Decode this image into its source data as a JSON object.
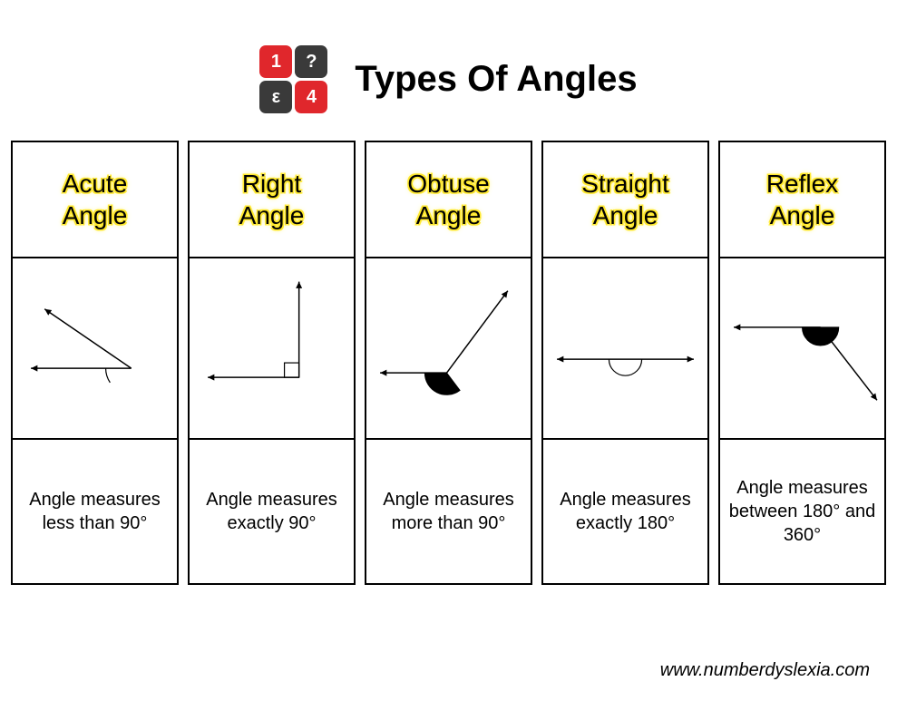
{
  "page": {
    "title": "Types Of Angles",
    "footer": "www.numberdyslexia.com",
    "background_color": "#ffffff",
    "title_fontsize": 40,
    "title_color": "#000000"
  },
  "logo": {
    "tiles": [
      {
        "glyph": "1",
        "bg": "#e0272c",
        "fg": "#ffffff"
      },
      {
        "glyph": "?",
        "bg": "#3a3a3a",
        "fg": "#ffffff"
      },
      {
        "glyph": "ε",
        "bg": "#3a3a3a",
        "fg": "#ffffff"
      },
      {
        "glyph": "4",
        "bg": "#e0272c",
        "fg": "#ffffff"
      }
    ],
    "tile_size": 36,
    "tile_radius": 7,
    "gap": 3
  },
  "columns": [
    {
      "title": "Acute\nAngle",
      "desc": "Angle measures less than 90°",
      "diagram": {
        "type": "angle",
        "vertex": [
          130,
          120
        ],
        "ray1_end": [
          20,
          120
        ],
        "ray2_end": [
          35,
          55
        ],
        "arc_radius": 28,
        "arc_start_deg": 180,
        "arc_end_deg": 214,
        "stroke": "#000000",
        "stroke_width": 1.5,
        "arrow_size": 8
      }
    },
    {
      "title": "Right\nAngle",
      "desc": "Angle measures exactly 90°",
      "diagram": {
        "type": "right-angle",
        "vertex": [
          120,
          130
        ],
        "ray1_end": [
          20,
          130
        ],
        "ray2_end": [
          120,
          25
        ],
        "square_size": 16,
        "stroke": "#000000",
        "stroke_width": 1.5,
        "arrow_size": 8
      }
    },
    {
      "title": "Obtuse\nAngle",
      "desc": "Angle measures more than 90°",
      "diagram": {
        "type": "angle",
        "vertex": [
          88,
          125
        ],
        "ray1_end": [
          15,
          125
        ],
        "ray2_end": [
          155,
          35
        ],
        "arc_radius": 24,
        "arc_start_deg": 180,
        "arc_end_deg": 307,
        "stroke": "#000000",
        "stroke_width": 1.5,
        "arrow_size": 8,
        "arc_fill": "#000000"
      }
    },
    {
      "title": "Straight\nAngle",
      "desc": "Angle measures exactly 180°",
      "diagram": {
        "type": "angle",
        "vertex": [
          90,
          110
        ],
        "ray1_end": [
          15,
          110
        ],
        "ray2_end": [
          165,
          110
        ],
        "arc_radius": 18,
        "arc_start_deg": 180,
        "arc_end_deg": 360,
        "stroke": "#000000",
        "stroke_width": 1.5,
        "arrow_size": 8
      }
    },
    {
      "title": "Reflex\nAngle",
      "desc": "Angle measures between 180° and 360°",
      "diagram": {
        "type": "angle",
        "vertex": [
          110,
          75
        ],
        "ray1_end": [
          15,
          75
        ],
        "ray2_end": [
          172,
          155
        ],
        "arc_radius": 20,
        "arc_start_deg": 180,
        "arc_end_deg": 360,
        "stroke": "#000000",
        "stroke_width": 1.5,
        "arrow_size": 8,
        "arc_fill": "#000000"
      }
    }
  ],
  "style": {
    "col_gap": 10,
    "border_color": "#000000",
    "border_width": 2,
    "title_cell_height": 130,
    "diagram_cell_height": 200,
    "desc_cell_height": 160,
    "title_fontsize": 28,
    "title_outline_color": "#ffe92e",
    "desc_fontsize": 20
  }
}
